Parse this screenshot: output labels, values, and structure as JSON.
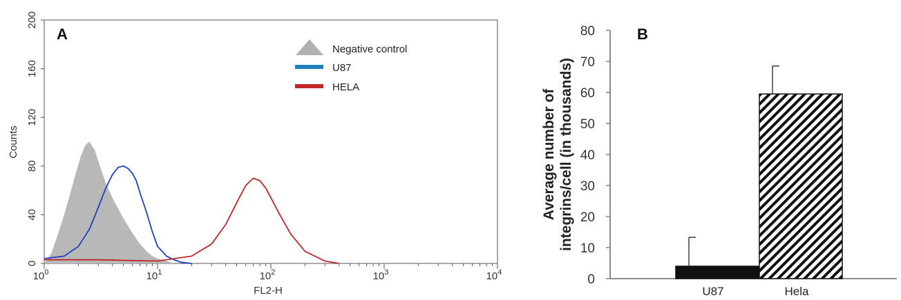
{
  "chart_data": [
    {
      "panel": "A",
      "type": "area",
      "xlabel": "FL2-H",
      "ylabel": "Counts",
      "xscale": "log",
      "xlim": [
        1,
        10000
      ],
      "ylim": [
        0,
        200
      ],
      "x_tick_bases": [
        "10",
        "10",
        "10",
        "10",
        "10"
      ],
      "x_tick_exps": [
        "0",
        "1",
        "2",
        "3",
        "4"
      ],
      "yticks": [
        "0",
        "40",
        "80",
        "120",
        "160",
        "200"
      ],
      "legend_position": "top-right",
      "series": [
        {
          "name": "Negative control",
          "style": "filled",
          "color": "#b8b8b8",
          "x": [
            1.0,
            1.15,
            1.3,
            1.5,
            1.7,
            1.9,
            2.1,
            2.3,
            2.5,
            2.8,
            3.1,
            3.5,
            4.0,
            4.5,
            5.0,
            6.0,
            7.0,
            8.0,
            9.0,
            10.0,
            12.0,
            14.0
          ],
          "y": [
            0,
            8,
            22,
            40,
            58,
            74,
            88,
            97,
            100,
            93,
            80,
            66,
            54,
            45,
            37,
            25,
            16,
            10,
            6,
            4,
            2,
            0
          ]
        },
        {
          "name": "U87",
          "style": "line",
          "color": "#1f3fbf",
          "x": [
            1.0,
            1.5,
            2.0,
            2.5,
            3.0,
            3.5,
            4.0,
            4.5,
            5.0,
            5.5,
            6.0,
            6.5,
            7.0,
            8.0,
            9.0,
            10.0,
            12.0,
            14.0,
            16.0,
            20.0
          ],
          "y": [
            4,
            6,
            14,
            28,
            46,
            62,
            73,
            79,
            80,
            78,
            74,
            68,
            58,
            42,
            26,
            14,
            6,
            3,
            1,
            0
          ]
        },
        {
          "name": "HELA",
          "style": "line",
          "color": "#c0252a",
          "x": [
            1.0,
            3.0,
            10.0,
            20.0,
            30.0,
            40.0,
            50.0,
            60.0,
            70.0,
            80.0,
            90.0,
            100.0,
            120.0,
            150.0,
            200.0,
            300.0,
            400.0
          ],
          "y": [
            3,
            3,
            2,
            6,
            16,
            32,
            50,
            64,
            70,
            68,
            62,
            54,
            40,
            24,
            10,
            2,
            0
          ]
        }
      ]
    },
    {
      "panel": "B",
      "type": "bar",
      "ylabel_lines": [
        "Average number of",
        "integrins/cell  (in thousands)"
      ],
      "categories": [
        "U87",
        "Hela"
      ],
      "values": [
        4,
        59.5
      ],
      "errors": [
        9.3,
        9
      ],
      "ylim": [
        0,
        80
      ],
      "yticks": [
        "0",
        "10",
        "20",
        "30",
        "40",
        "50",
        "60",
        "70",
        "80"
      ],
      "bar_styles": [
        "solid-black",
        "diagonal-hatch"
      ]
    }
  ]
}
